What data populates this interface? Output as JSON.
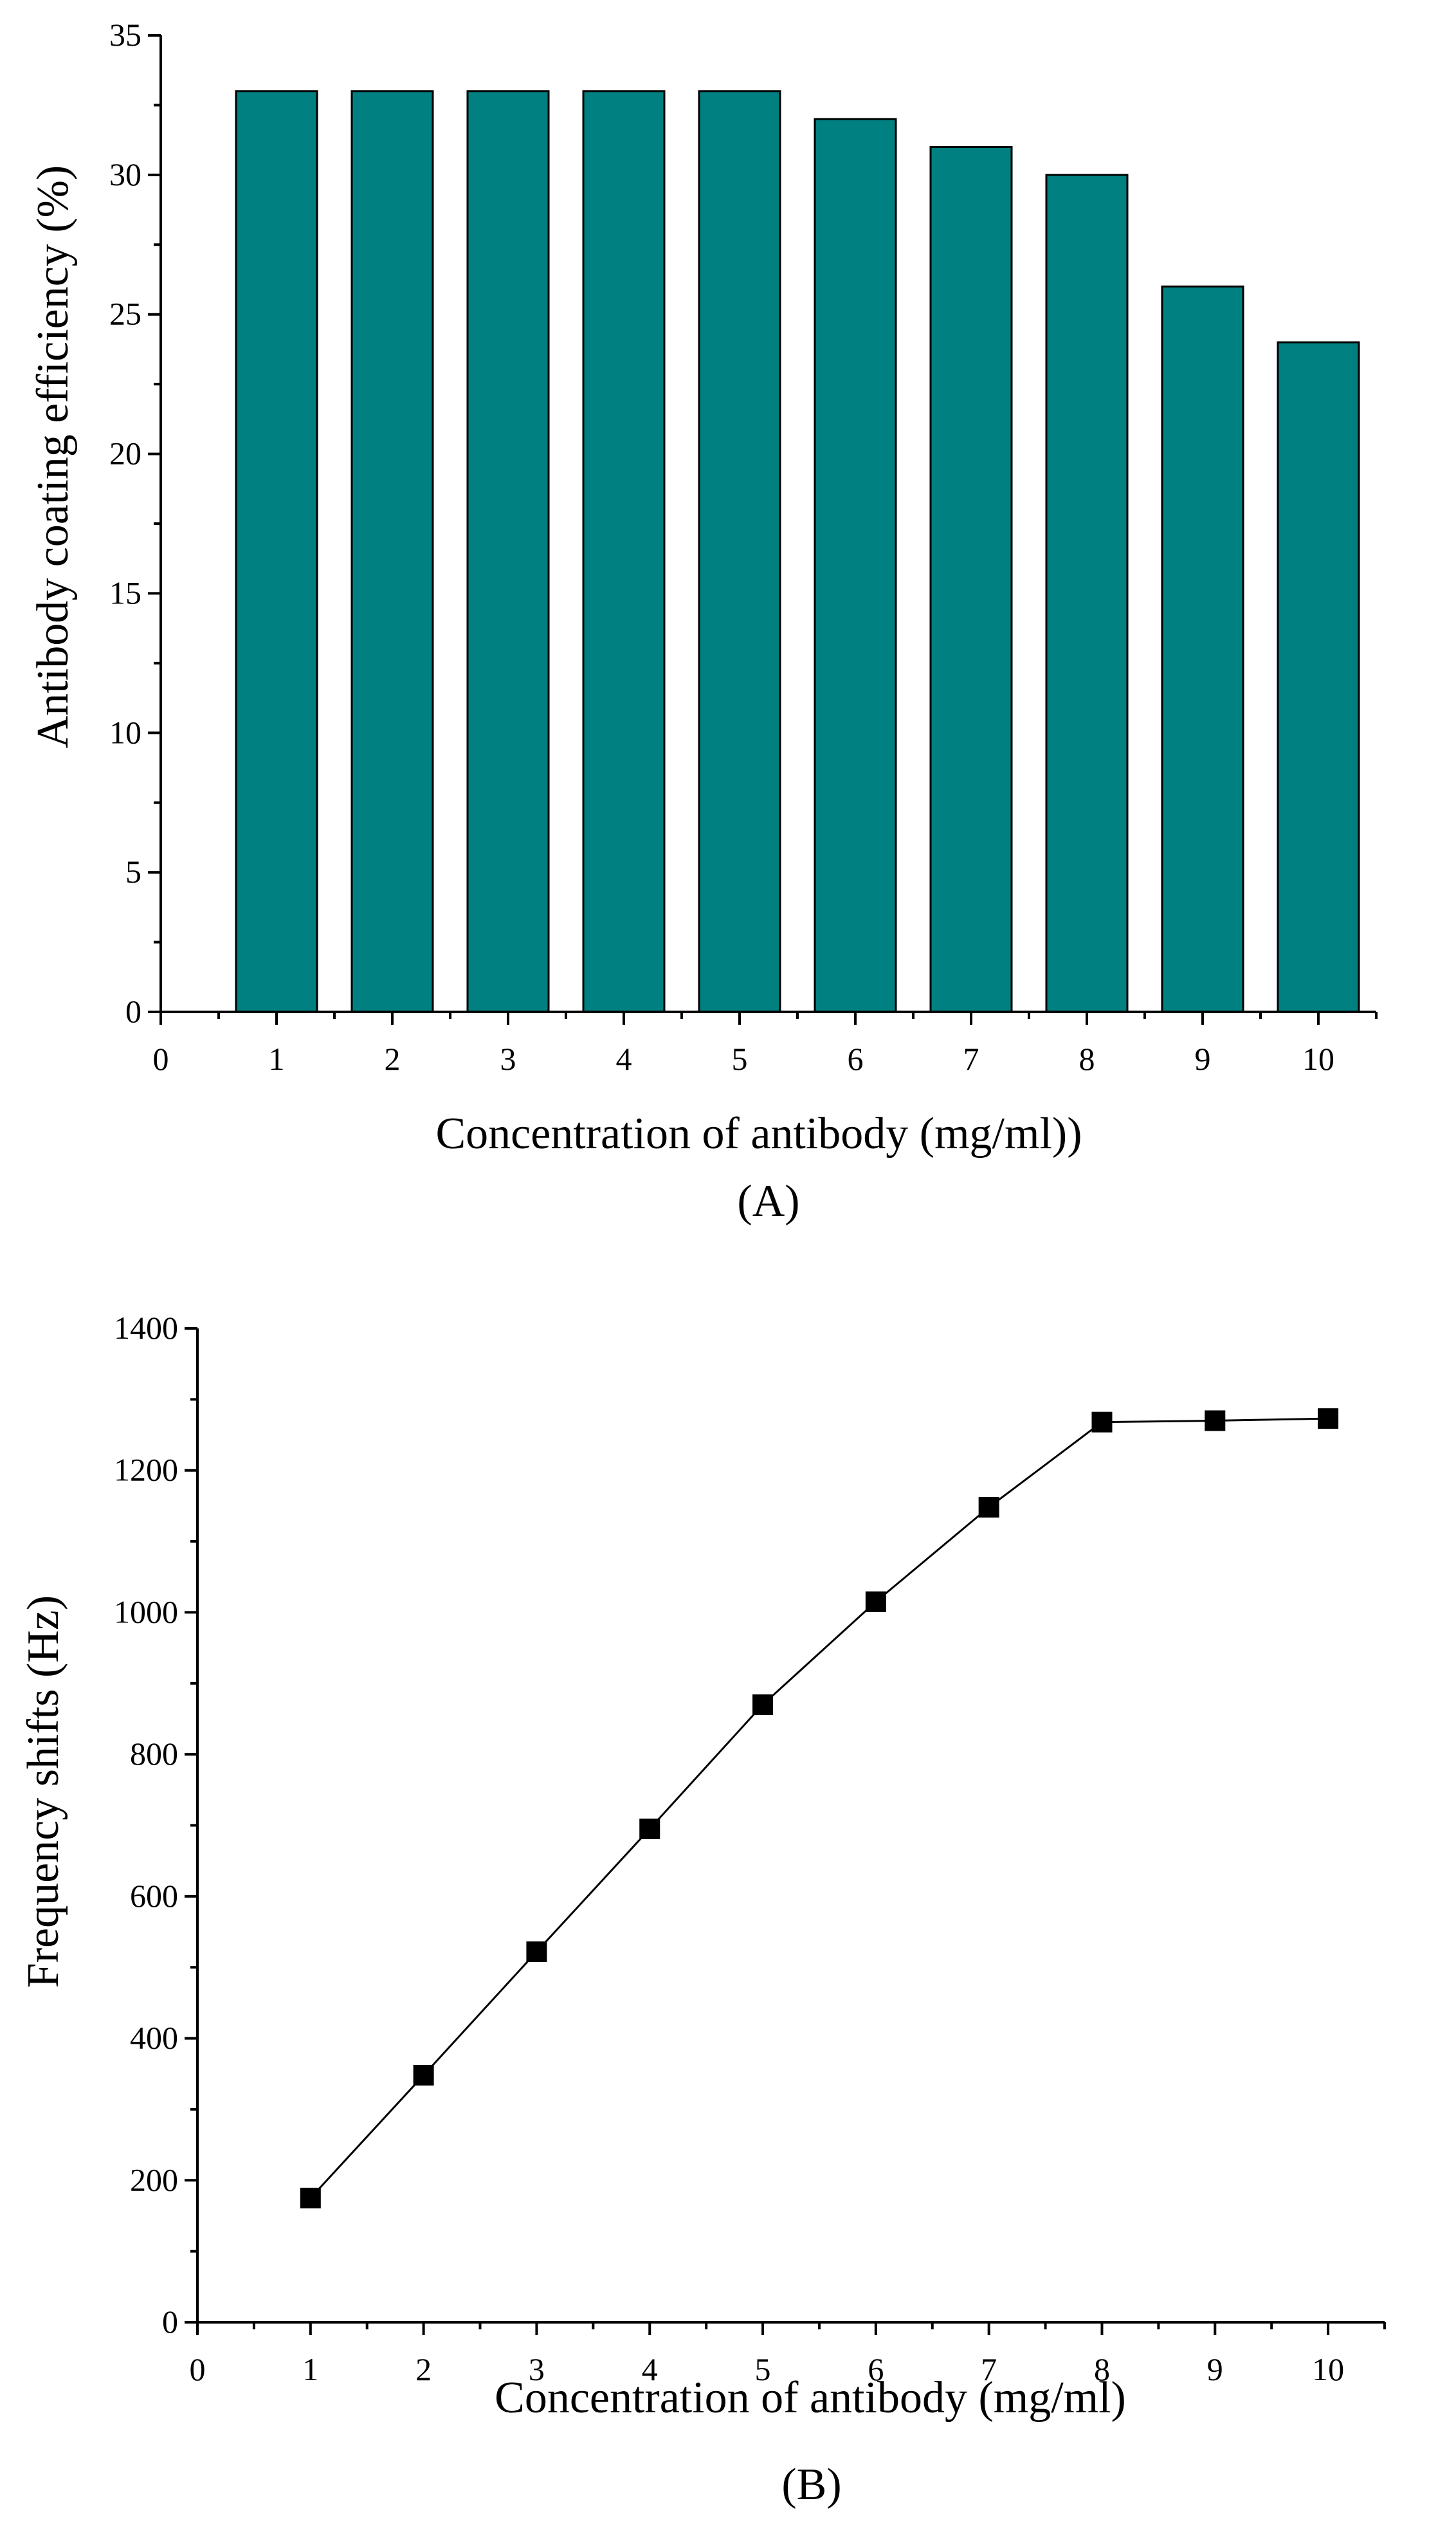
{
  "chart_data": [
    {
      "type": "bar",
      "panel_label": "(A)",
      "xlabel": "Concentration of antibody (mg/ml))",
      "ylabel": "Antibody coating efficiency (%)",
      "x_ticks": [
        "0",
        "1",
        "2",
        "3",
        "4",
        "5",
        "6",
        "7",
        "8",
        "9",
        "10"
      ],
      "y_ticks": [
        "0",
        "5",
        "10",
        "15",
        "20",
        "25",
        "30",
        "35"
      ],
      "xlim": [
        0,
        10.5
      ],
      "ylim": [
        0,
        35
      ],
      "categories": [
        1,
        2,
        3,
        4,
        5,
        6,
        7,
        8,
        9,
        10
      ],
      "values": [
        33,
        33,
        33,
        33,
        33,
        32,
        31,
        30,
        26,
        24
      ],
      "bar_color": "#008080",
      "grid": false
    },
    {
      "type": "line",
      "panel_label": "(B)",
      "xlabel": "Concentration of antibody (mg/ml)",
      "ylabel": "Frequency shifts (Hz)",
      "x_ticks": [
        "0",
        "1",
        "2",
        "3",
        "4",
        "5",
        "6",
        "7",
        "8",
        "9",
        "10"
      ],
      "y_ticks": [
        "0",
        "200",
        "400",
        "600",
        "800",
        "1000",
        "1200",
        "1400"
      ],
      "xlim": [
        0,
        10.5
      ],
      "ylim": [
        0,
        1400
      ],
      "x": [
        1,
        2,
        3,
        4,
        5,
        6,
        7,
        8,
        9,
        10
      ],
      "y": [
        175,
        348,
        522,
        695,
        870,
        1015,
        1148,
        1268,
        1270,
        1273
      ],
      "marker": "square",
      "line_color": "#000000",
      "grid": false
    }
  ]
}
